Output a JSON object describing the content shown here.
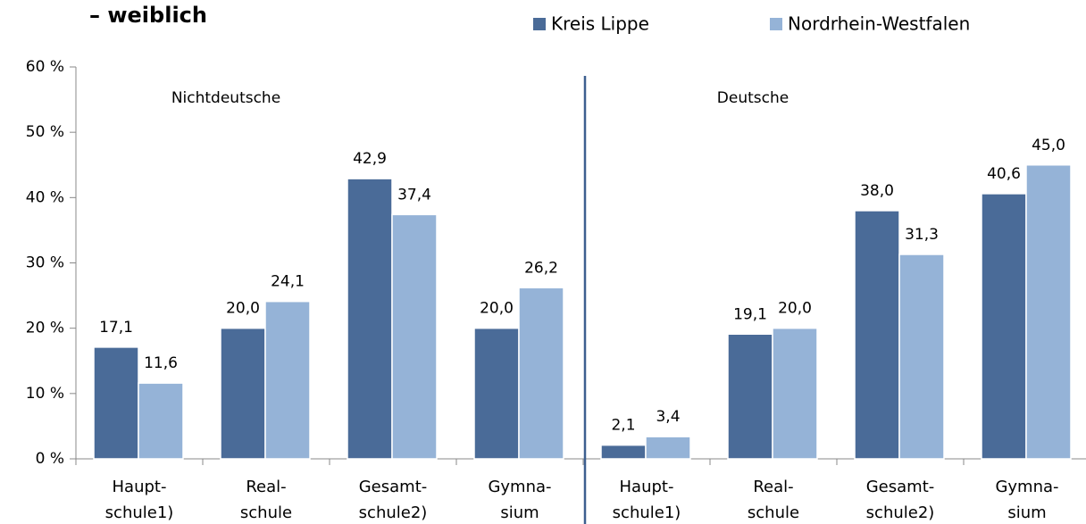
{
  "chart_data": {
    "type": "bar",
    "title": "– weiblich",
    "annotations": [
      "Nichtdeutsche",
      "Deutsche"
    ],
    "categories": [
      "Haupt-\nschule1)",
      "Real-\nschule",
      "Gesamt-\nschule2)",
      "Gymna-\nsium",
      "Haupt-\nschule1)",
      "Real-\nschule",
      "Gesamt-\nschule2)",
      "Gymna-\nsium"
    ],
    "series": [
      {
        "name": "Kreis Lippe",
        "color": "#4a6b98",
        "values": [
          17.1,
          20.0,
          42.9,
          20.0,
          2.1,
          19.1,
          38.0,
          40.6
        ],
        "value_labels": [
          "17,1",
          "20,0",
          "42,9",
          "20,0",
          "2,1",
          "19,1",
          "38,0",
          "40,6"
        ]
      },
      {
        "name": "Nordrhein-Westfalen",
        "color": "#95b3d7",
        "values": [
          11.6,
          24.1,
          37.4,
          26.2,
          3.4,
          20.0,
          31.3,
          45.0
        ],
        "value_labels": [
          "11,6",
          "24,1",
          "37,4",
          "26,2",
          "3,4",
          "20,0",
          "31,3",
          "45,0"
        ]
      }
    ],
    "ylim": [
      0,
      60
    ],
    "yticks": [
      {
        "value": 0,
        "label": "0 %"
      },
      {
        "value": 10,
        "label": "10 %"
      },
      {
        "value": 20,
        "label": "20 %"
      },
      {
        "value": 30,
        "label": "30 %"
      },
      {
        "value": 40,
        "label": "40 %"
      },
      {
        "value": 50,
        "label": "50 %"
      },
      {
        "value": 60,
        "label": "60 %"
      }
    ],
    "grid": false
  }
}
